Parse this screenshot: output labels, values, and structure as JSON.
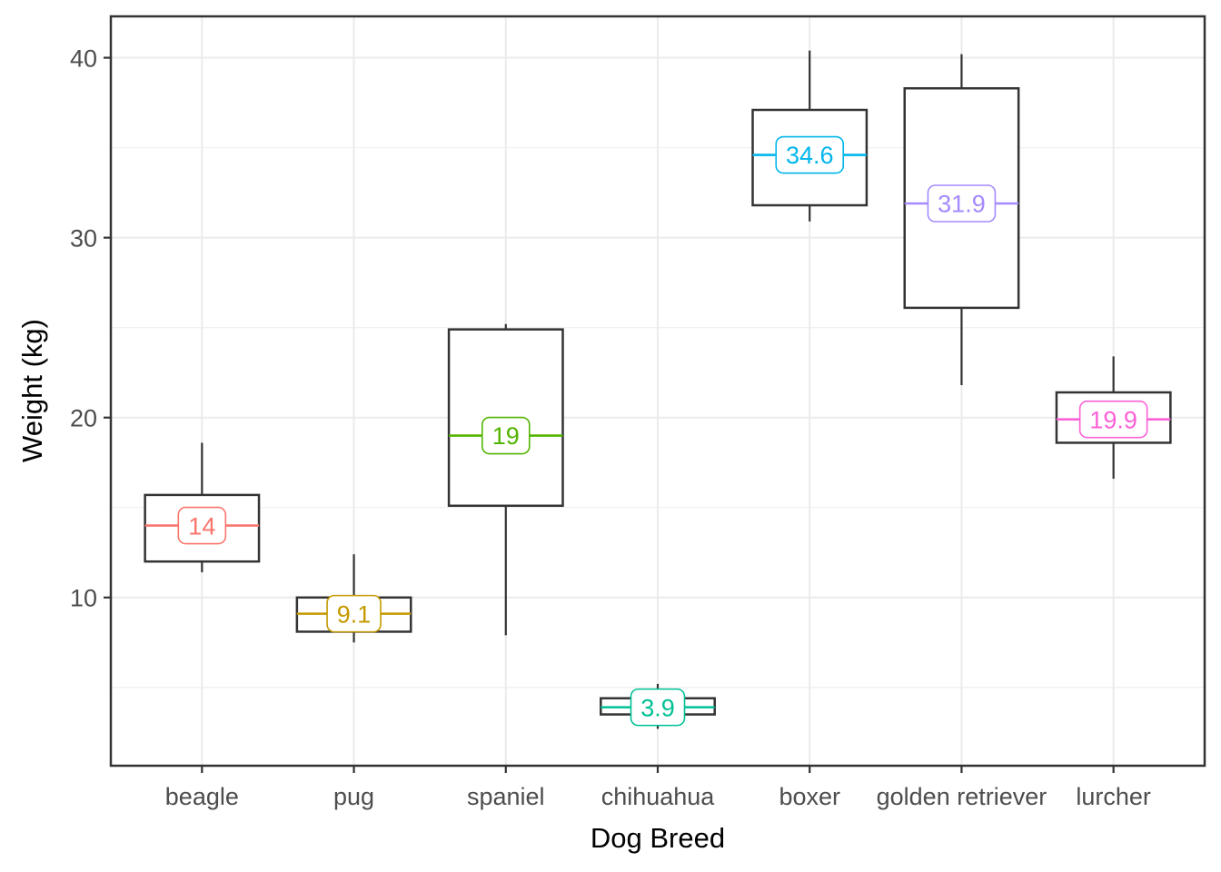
{
  "chart_data": {
    "type": "boxplot",
    "title": "",
    "xlabel": "Dog Breed",
    "ylabel": "Weight (kg)",
    "categories": [
      "beagle",
      "pug",
      "spaniel",
      "chihuahua",
      "boxer",
      "golden retriever",
      "lurcher"
    ],
    "ylim": [
      0.65,
      42.3
    ],
    "y_major_ticks": [
      10,
      20,
      30,
      40
    ],
    "y_tick_labels": [
      "10",
      "20",
      "30",
      "40"
    ],
    "y_minor_ticks": [
      5,
      15,
      25,
      35
    ],
    "grid": "on",
    "legend": "none",
    "series": [
      {
        "name": "beagle",
        "median_label": "14",
        "color": "#F8766D",
        "whisker_low": 11.4,
        "q1": 12.0,
        "median": 14.0,
        "q3": 15.7,
        "whisker_high": 18.6
      },
      {
        "name": "pug",
        "median_label": "9.1",
        "color": "#C49A00",
        "whisker_low": 7.5,
        "q1": 8.1,
        "median": 9.1,
        "q3": 10.0,
        "whisker_high": 12.4
      },
      {
        "name": "spaniel",
        "median_label": "19",
        "color": "#53B400",
        "whisker_low": 7.9,
        "q1": 15.1,
        "median": 19.0,
        "q3": 24.9,
        "whisker_high": 25.2
      },
      {
        "name": "chihuahua",
        "median_label": "3.9",
        "color": "#00C094",
        "whisker_low": 2.7,
        "q1": 3.5,
        "median": 3.9,
        "q3": 4.4,
        "whisker_high": 5.2
      },
      {
        "name": "boxer",
        "median_label": "34.6",
        "color": "#00B6EB",
        "whisker_low": 30.9,
        "q1": 31.8,
        "median": 34.6,
        "q3": 37.1,
        "whisker_high": 40.4
      },
      {
        "name": "golden retriever",
        "median_label": "31.9",
        "color": "#A58AFF",
        "whisker_low": 21.8,
        "q1": 26.1,
        "median": 31.9,
        "q3": 38.3,
        "whisker_high": 40.2
      },
      {
        "name": "lurcher",
        "median_label": "19.9",
        "color": "#FB61D7",
        "whisker_low": 16.6,
        "q1": 18.6,
        "median": 19.9,
        "q3": 21.4,
        "whisker_high": 23.4
      }
    ],
    "styles": {
      "background": "#FFFFFF",
      "panel_background": "#FFFFFF",
      "panel_border": "#333333",
      "grid_major": "#EBEBEB",
      "grid_minor": "#F0F0F0",
      "box_border": "#333333",
      "whisker": "#333333",
      "axis_text": "#4D4D4D",
      "axis_title": "#000000",
      "tick_mark": "#333333"
    }
  }
}
